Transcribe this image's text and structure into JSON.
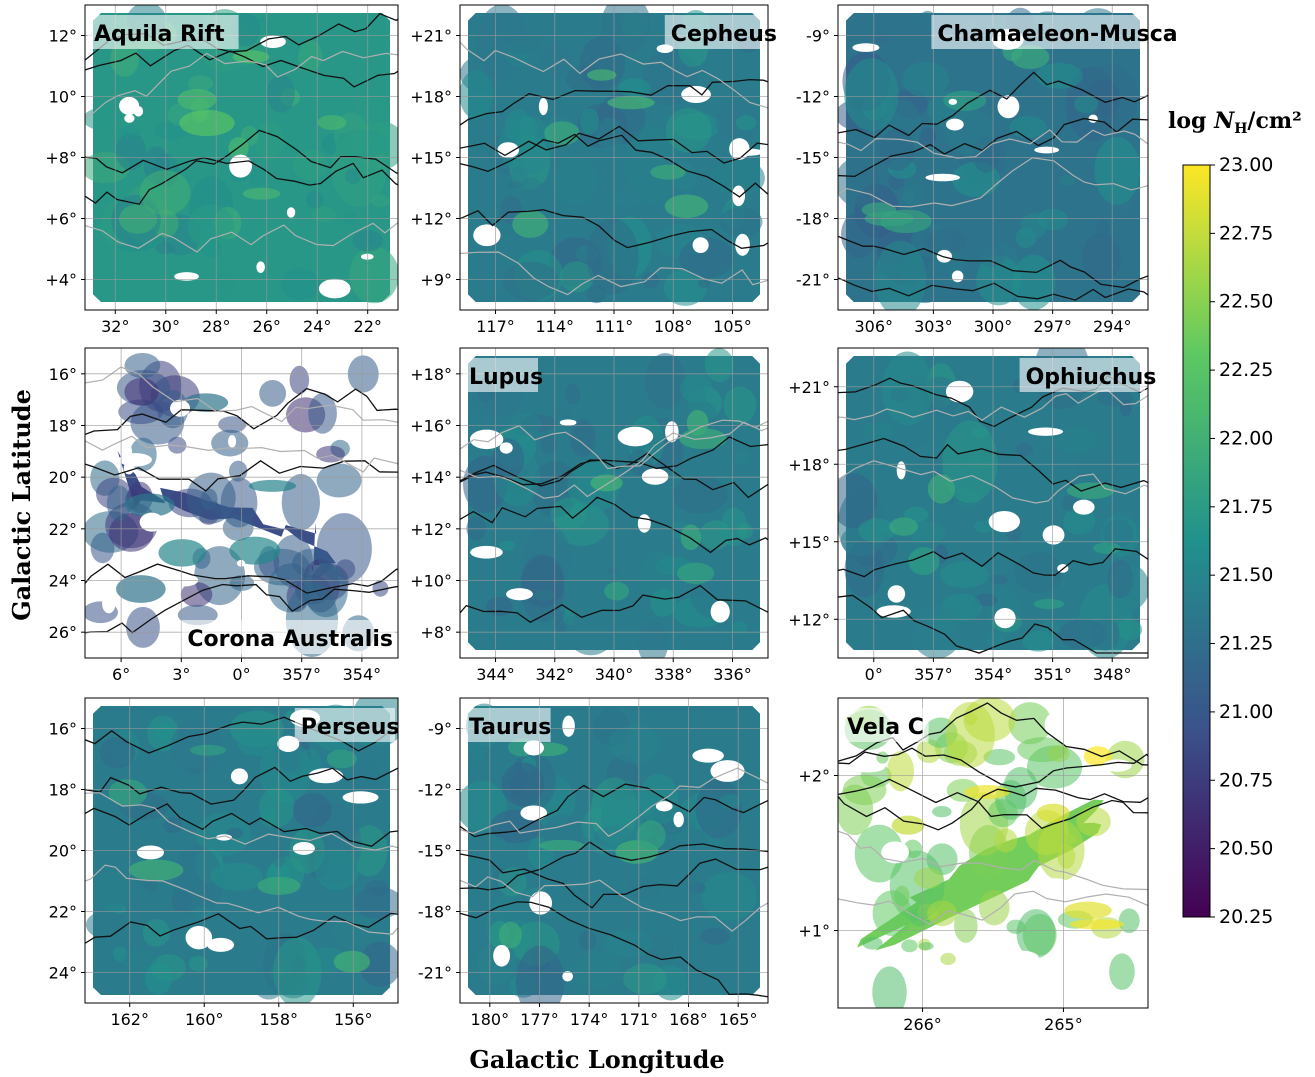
{
  "figure": {
    "xlabel": "Galactic Longitude",
    "ylabel": "Galactic Latitude",
    "colorbar": {
      "label_prefix": "log ",
      "label_var": "N",
      "label_sub": "H",
      "label_suffix": "/cm²",
      "min": 20.25,
      "max": 23.0,
      "ticks": [
        "23.00",
        "22.75",
        "22.50",
        "22.25",
        "22.00",
        "21.75",
        "21.50",
        "21.25",
        "21.00",
        "20.75",
        "20.50",
        "20.25"
      ],
      "colormap": "viridis",
      "colors": [
        "#440154",
        "#3b528b",
        "#21918c",
        "#5ec962",
        "#fde725"
      ]
    }
  },
  "chart_data": [
    {
      "type": "heatmap",
      "title": "Aquila Rift",
      "xticks": [
        "32°",
        "30°",
        "28°",
        "26°",
        "24°",
        "22°"
      ],
      "yticks": [
        "12°",
        "10°",
        "+8°",
        "+6°",
        "+4°"
      ],
      "typical_logN": 21.7
    },
    {
      "type": "heatmap",
      "title": "Cepheus",
      "xticks": [
        "117°",
        "114°",
        "111°",
        "108°",
        "105°"
      ],
      "yticks": [
        "+21°",
        "+18°",
        "+15°",
        "+12°",
        "+9°"
      ],
      "typical_logN": 21.4
    },
    {
      "type": "heatmap",
      "title": "Chamaeleon-Musca",
      "xticks": [
        "306°",
        "303°",
        "300°",
        "297°",
        "294°"
      ],
      "yticks": [
        "-9°",
        "-12°",
        "-15°",
        "-18°",
        "-21°"
      ],
      "typical_logN": 21.3
    },
    {
      "type": "heatmap",
      "title": "Corona Australis",
      "xticks": [
        "6°",
        "3°",
        "0°",
        "357°",
        "354°"
      ],
      "yticks": [
        "16°",
        "18°",
        "20°",
        "22°",
        "24°",
        "26°"
      ],
      "typical_logN": 20.9
    },
    {
      "type": "heatmap",
      "title": "Lupus",
      "xticks": [
        "344°",
        "342°",
        "340°",
        "338°",
        "336°"
      ],
      "yticks": [
        "+18°",
        "+16°",
        "+14°",
        "+12°",
        "+10°",
        "+8°"
      ],
      "typical_logN": 21.4
    },
    {
      "type": "heatmap",
      "title": "Ophiuchus",
      "xticks": [
        "0°",
        "357°",
        "354°",
        "351°",
        "348°"
      ],
      "yticks": [
        "+21°",
        "+18°",
        "+15°",
        "+12°"
      ],
      "typical_logN": 21.4
    },
    {
      "type": "heatmap",
      "title": "Perseus",
      "xticks": [
        "162°",
        "160°",
        "158°",
        "156°"
      ],
      "yticks": [
        "16°",
        "18°",
        "20°",
        "22°",
        "24°"
      ],
      "typical_logN": 21.4
    },
    {
      "type": "heatmap",
      "title": "Taurus",
      "xticks": [
        "180°",
        "177°",
        "174°",
        "171°",
        "168°",
        "165°"
      ],
      "yticks": [
        "-9°",
        "-12°",
        "-15°",
        "-18°",
        "-21°"
      ],
      "typical_logN": 21.4
    },
    {
      "type": "heatmap",
      "title": "Vela C",
      "xticks": [
        "266°",
        "265°"
      ],
      "yticks": [
        "+2°",
        "+1°"
      ],
      "typical_logN": 22.4
    }
  ]
}
